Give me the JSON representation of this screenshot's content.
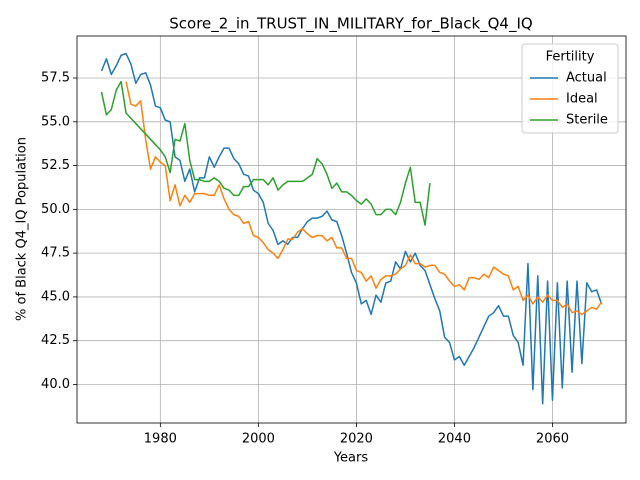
{
  "chart_data": {
    "type": "line",
    "title": "Score_2_in_TRUST_IN_MILITARY_for_Black_Q4_IQ",
    "xlabel": "Years",
    "ylabel": "% of Black Q4_IQ Population",
    "legend_title": "Fertility",
    "legend": "upper right",
    "grid": true,
    "xlim": [
      1963,
      2075
    ],
    "ylim": [
      37.8,
      59.9
    ],
    "xticks": [
      1980,
      2000,
      2020,
      2040,
      2060
    ],
    "yticks": [
      {
        "value": 40,
        "label": "40.0"
      },
      42.5,
      {
        "value": 45,
        "label": "45.0"
      },
      47.5,
      {
        "value": 50,
        "label": "50.0"
      },
      52.5,
      {
        "value": 55,
        "label": "55.0"
      },
      57.5
    ],
    "x": [
      1968,
      1969,
      1970,
      1971,
      1972,
      1973,
      1974,
      1975,
      1976,
      1977,
      1978,
      1979,
      1980,
      1981,
      1982,
      1983,
      1984,
      1985,
      1986,
      1987,
      1988,
      1989,
      1990,
      1991,
      1992,
      1993,
      1994,
      1995,
      1996,
      1997,
      1998,
      1999,
      2000,
      2001,
      2002,
      2003,
      2004,
      2005,
      2006,
      2007,
      2008,
      2009,
      2010,
      2011,
      2012,
      2013,
      2014,
      2015,
      2016,
      2017,
      2018,
      2019,
      2020,
      2021,
      2022,
      2023,
      2024,
      2025,
      2026,
      2027,
      2028,
      2029,
      2030,
      2031,
      2032,
      2033,
      2034,
      2035,
      2036,
      2037,
      2038,
      2039,
      2040,
      2041,
      2042,
      2043,
      2044,
      2045,
      2046,
      2047,
      2048,
      2049,
      2050,
      2051,
      2052,
      2053,
      2054,
      2055,
      2056,
      2057,
      2058,
      2059,
      2060,
      2061,
      2062,
      2063,
      2064,
      2065,
      2066,
      2067,
      2068,
      2069,
      2070
    ],
    "series": [
      {
        "name": "Actual",
        "color": "#1f77b4",
        "values": [
          57.9,
          58.6,
          57.7,
          58.2,
          58.8,
          58.9,
          58.3,
          57.2,
          57.7,
          57.8,
          57.1,
          55.9,
          55.8,
          55.1,
          55.0,
          53.0,
          52.8,
          51.6,
          52.3,
          51.0,
          51.8,
          51.8,
          53.0,
          52.4,
          53.0,
          53.5,
          53.5,
          52.9,
          52.6,
          52.0,
          51.9,
          51.1,
          50.9,
          50.4,
          49.2,
          48.8,
          48.0,
          48.2,
          48.0,
          48.4,
          48.4,
          48.9,
          49.3,
          49.5,
          49.5,
          49.6,
          49.9,
          49.4,
          49.3,
          48.5,
          47.5,
          46.4,
          45.8,
          44.6,
          44.8,
          44.0,
          45.1,
          44.7,
          45.8,
          45.9,
          47.0,
          46.6,
          47.6,
          47.0,
          47.5,
          46.8,
          46.5,
          45.7,
          44.9,
          44.2,
          42.7,
          42.4,
          41.4,
          41.6,
          41.1,
          41.6,
          42.1,
          42.7,
          43.3,
          43.9,
          44.1,
          44.5,
          43.9,
          43.9,
          42.8,
          42.4,
          41.1,
          46.9,
          39.7,
          46.2,
          38.9,
          45.9,
          39.1,
          45.8,
          39.8,
          45.9,
          40.7,
          45.9,
          41.2,
          45.8,
          45.3,
          45.4,
          44.6
        ]
      },
      {
        "name": "Ideal",
        "color": "#ff7f0e",
        "values": [
          null,
          null,
          null,
          null,
          null,
          57.3,
          56.0,
          55.9,
          56.2,
          54.0,
          52.3,
          53.0,
          52.7,
          52.5,
          50.5,
          51.4,
          50.2,
          50.8,
          50.4,
          50.9,
          50.9,
          50.9,
          50.8,
          50.8,
          51.4,
          50.6,
          50.0,
          49.7,
          49.6,
          49.2,
          49.3,
          48.5,
          48.4,
          48.1,
          47.7,
          47.5,
          47.2,
          47.7,
          48.3,
          48.3,
          48.7,
          48.9,
          48.6,
          48.4,
          48.5,
          48.5,
          48.2,
          48.4,
          47.8,
          47.8,
          47.2,
          47.2,
          46.5,
          46.4,
          45.9,
          46.2,
          45.5,
          46.0,
          46.2,
          46.2,
          46.3,
          46.6,
          46.8,
          47.4,
          46.9,
          46.9,
          46.7,
          46.8,
          46.8,
          46.4,
          46.3,
          45.9,
          45.6,
          45.7,
          45.4,
          46.1,
          46.1,
          46.0,
          46.3,
          46.1,
          46.7,
          46.5,
          46.3,
          46.2,
          45.4,
          45.6,
          44.8,
          45.1,
          44.6,
          45.0,
          44.7,
          45.1,
          44.8,
          44.8,
          44.4,
          44.6,
          44.1,
          44.2,
          44.0,
          44.2,
          44.4,
          44.3,
          44.7
        ]
      },
      {
        "name": "Sterile",
        "color": "#2ca02c",
        "values": [
          56.7,
          55.4,
          55.7,
          56.8,
          57.3,
          55.5,
          55.2,
          54.9,
          54.6,
          54.3,
          54.0,
          53.7,
          53.4,
          53.0,
          52.1,
          54.0,
          53.9,
          54.9,
          52.8,
          51.7,
          51.7,
          51.6,
          51.6,
          51.8,
          51.6,
          51.2,
          51.1,
          50.8,
          50.8,
          51.3,
          51.3,
          51.7,
          51.7,
          51.7,
          51.4,
          51.8,
          51.1,
          51.4,
          51.6,
          51.6,
          51.6,
          51.6,
          51.8,
          52.0,
          52.9,
          52.6,
          52.0,
          51.2,
          51.5,
          51.0,
          51.0,
          50.8,
          50.5,
          50.3,
          50.6,
          50.3,
          49.7,
          49.7,
          50.0,
          50.0,
          49.7,
          50.4,
          51.5,
          52.4,
          50.4,
          50.4,
          49.1,
          51.5,
          null,
          null,
          null,
          null,
          null,
          null,
          null,
          null,
          null,
          null,
          null,
          null,
          null,
          null,
          null,
          null,
          null,
          null,
          null,
          null,
          null,
          null,
          null,
          null,
          null,
          null,
          null,
          null,
          null,
          null,
          null,
          null,
          null,
          null,
          null
        ]
      }
    ]
  }
}
